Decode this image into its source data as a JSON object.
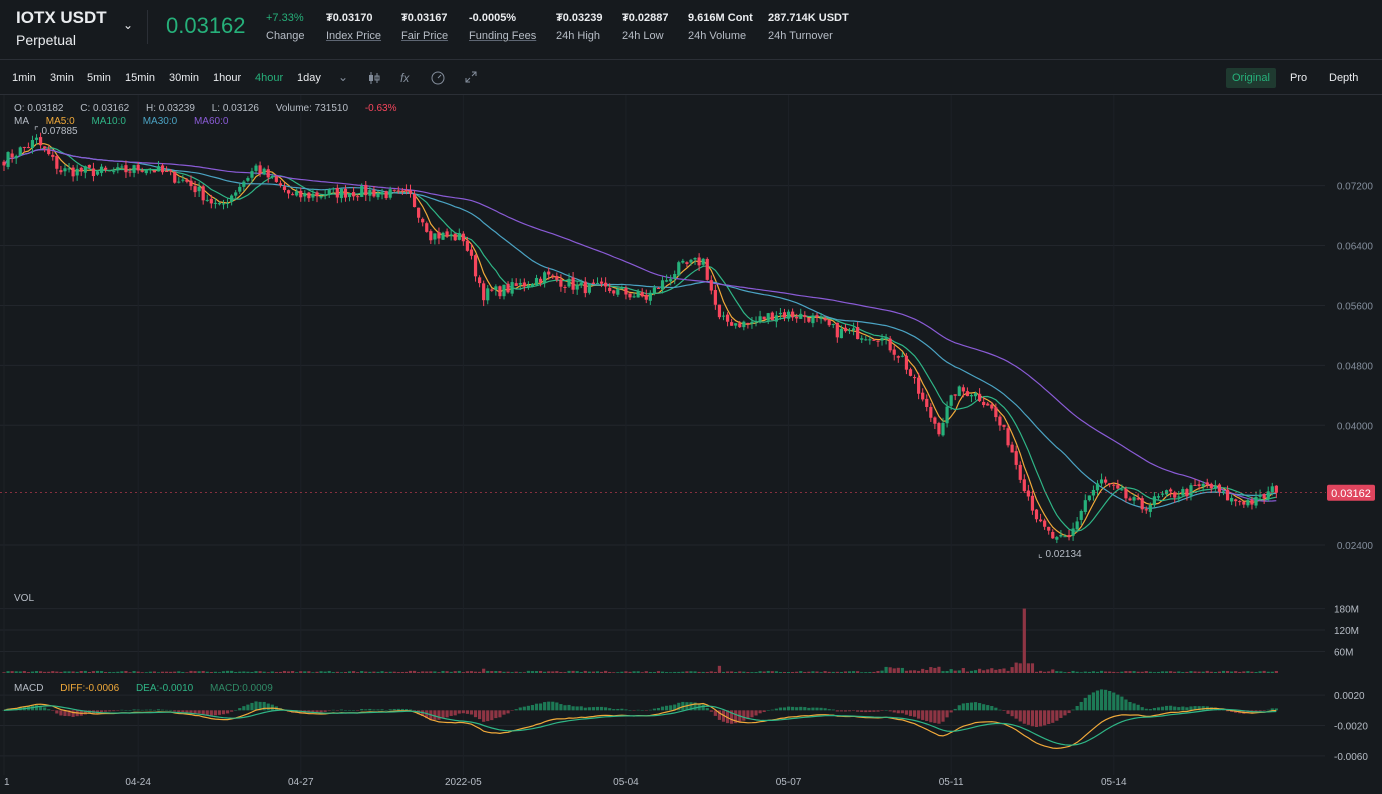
{
  "header": {
    "symbol": "IOTX USDT",
    "contract_type": "Perpetual",
    "last_price": "0.03162",
    "change_value": "+7.33%",
    "change_label": "Change",
    "index_price": "₮0.03170",
    "index_label": "Index Price",
    "fair_price": "₮0.03167",
    "fair_label": "Fair Price",
    "funding": "-0.0005%",
    "funding_label": "Funding Fees",
    "high": "₮0.03239",
    "high_label": "24h High",
    "low": "₮0.02887",
    "low_label": "24h Low",
    "volume": "9.616M Cont",
    "volume_label": "24h Volume",
    "turnover": "287.714K USDT",
    "turnover_label": "24h Turnover"
  },
  "toolbar": {
    "timeframes": [
      "1min",
      "3min",
      "5min",
      "15min",
      "30min",
      "1hour",
      "4hour",
      "1day"
    ],
    "active_timeframe": "4hour",
    "views": [
      "Original",
      "Pro",
      "Depth"
    ],
    "active_view": "Original",
    "fx_label": "fx"
  },
  "legend": {
    "open": "O: 0.03182",
    "close": "C: 0.03162",
    "high": "H: 0.03239",
    "low": "L: 0.03126",
    "volume": "Volume: 731510",
    "change": "-0.63%",
    "ma_label": "MA",
    "ma5": "MA5:0",
    "ma10": "MA10:0",
    "ma30": "MA30:0",
    "ma60": "MA60:0",
    "vol_label": "VOL",
    "macd_label": "MACD",
    "diff": "DIFF:-0.0006",
    "dea": "DEA:-0.0010",
    "macd": "MACD:0.0009"
  },
  "colors": {
    "up": "#26b07a",
    "down": "#f6465d",
    "ma5": "#f0a93a",
    "ma10": "#2fb586",
    "ma30": "#4ba3c3",
    "ma60": "#8a5bd6"
  },
  "chart_data": {
    "type": "candlestick",
    "price_axis_ticks": [
      "0.07200",
      "0.06400",
      "0.05600",
      "0.04800",
      "0.04000",
      "0.02400"
    ],
    "current_price_tag": "0.03162",
    "max_annotation": "0.07885",
    "min_annotation": "0.02134",
    "volume_axis_ticks": [
      "180M",
      "120M",
      "60M"
    ],
    "macd_axis_ticks": [
      "0.0020",
      "-0.0020",
      "-0.0060"
    ],
    "x_tick_labels": [
      "1",
      "04-24",
      "04-27",
      "2022-05",
      "05-04",
      "05-07",
      "05-11",
      "05-14"
    ],
    "x_ticks_at_candle": [
      0,
      33,
      73,
      113,
      153,
      193,
      233,
      273
    ],
    "price_range": [
      0.0196,
      0.0801
    ],
    "volume_range": [
      0,
      190
    ],
    "macd_range": [
      -0.0072,
      0.0036
    ],
    "close_keypoints": [
      [
        0,
        0.0755
      ],
      [
        8,
        0.078
      ],
      [
        14,
        0.074
      ],
      [
        28,
        0.0738
      ],
      [
        35,
        0.0745
      ],
      [
        45,
        0.0725
      ],
      [
        53,
        0.069
      ],
      [
        62,
        0.0745
      ],
      [
        71,
        0.0705
      ],
      [
        80,
        0.071
      ],
      [
        90,
        0.0712
      ],
      [
        100,
        0.0705
      ],
      [
        105,
        0.0655
      ],
      [
        113,
        0.065
      ],
      [
        118,
        0.0575
      ],
      [
        126,
        0.0585
      ],
      [
        133,
        0.06
      ],
      [
        141,
        0.0585
      ],
      [
        150,
        0.058
      ],
      [
        158,
        0.057
      ],
      [
        166,
        0.061
      ],
      [
        172,
        0.062
      ],
      [
        176,
        0.054
      ],
      [
        183,
        0.0535
      ],
      [
        190,
        0.055
      ],
      [
        198,
        0.0545
      ],
      [
        205,
        0.0525
      ],
      [
        215,
        0.052
      ],
      [
        221,
        0.049
      ],
      [
        227,
        0.042
      ],
      [
        230,
        0.0395
      ],
      [
        234,
        0.0445
      ],
      [
        238,
        0.0445
      ],
      [
        242,
        0.043
      ],
      [
        247,
        0.038
      ],
      [
        251,
        0.032
      ],
      [
        255,
        0.0265
      ],
      [
        259,
        0.0245
      ],
      [
        262,
        0.0248
      ],
      [
        266,
        0.03
      ],
      [
        270,
        0.0325
      ],
      [
        274,
        0.031
      ],
      [
        280,
        0.029
      ],
      [
        285,
        0.0305
      ],
      [
        290,
        0.031
      ],
      [
        296,
        0.032
      ],
      [
        302,
        0.03
      ],
      [
        308,
        0.0298
      ],
      [
        313,
        0.0316
      ]
    ],
    "volume_spike": [
      [
        0,
        2
      ],
      [
        118,
        12
      ],
      [
        176,
        20
      ],
      [
        228,
        14
      ],
      [
        251,
        180
      ],
      [
        258,
        10
      ],
      [
        270,
        6
      ]
    ],
    "candle_count": 314
  }
}
